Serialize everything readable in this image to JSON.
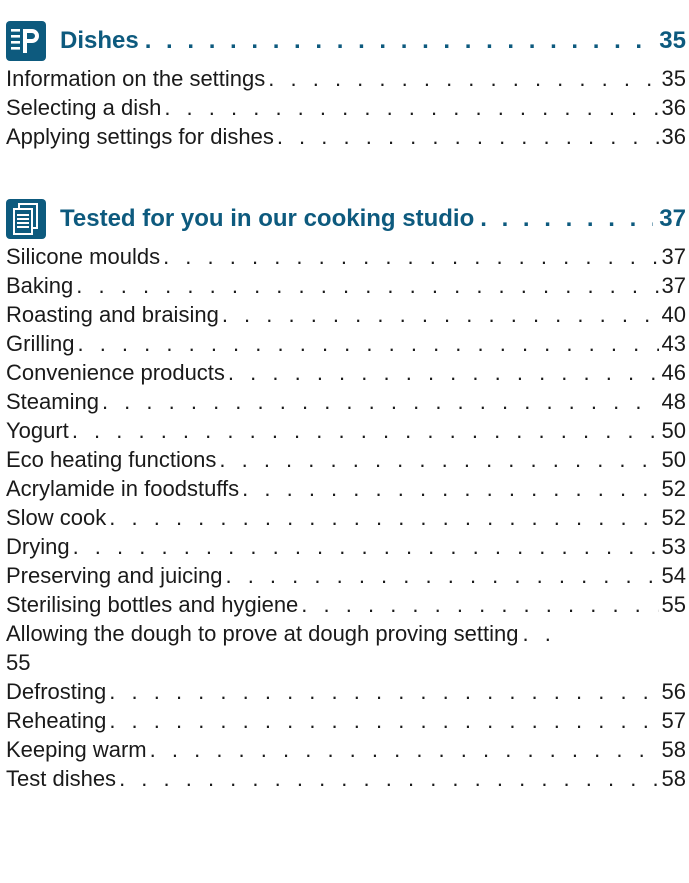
{
  "sections": [
    {
      "icon": "program-p-icon",
      "title": "Dishes",
      "page": "35",
      "entries": [
        {
          "title": "Information on the settings",
          "page": "35"
        },
        {
          "title": "Selecting a dish",
          "page": "36"
        },
        {
          "title": "Applying settings for dishes",
          "page": "36"
        }
      ]
    },
    {
      "icon": "document-list-icon",
      "title": "Tested for you in our cooking studio",
      "page": "37",
      "entries": [
        {
          "title": "Silicone moulds",
          "page": "37"
        },
        {
          "title": "Baking",
          "page": "37"
        },
        {
          "title": "Roasting and braising",
          "page": "40"
        },
        {
          "title": "Grilling",
          "page": "43"
        },
        {
          "title": "Convenience products",
          "page": "46"
        },
        {
          "title": "Steaming",
          "page": "48"
        },
        {
          "title": "Yogurt",
          "page": "50"
        },
        {
          "title": "Eco heating functions",
          "page": "50"
        },
        {
          "title": "Acrylamide in foodstuffs",
          "page": "52"
        },
        {
          "title": "Slow cook",
          "page": "52"
        },
        {
          "title": "Drying",
          "page": "53"
        },
        {
          "title": "Preserving and juicing",
          "page": "54"
        },
        {
          "title": "Sterilising bottles and hygiene",
          "page": "55"
        },
        {
          "title": "Allowing the dough to prove at dough proving setting",
          "page": "55"
        },
        {
          "title": "Defrosting",
          "page": "56"
        },
        {
          "title": "Reheating",
          "page": "57"
        },
        {
          "title": "Keeping warm",
          "page": "58"
        },
        {
          "title": "Test dishes",
          "page": "58"
        }
      ]
    }
  ]
}
